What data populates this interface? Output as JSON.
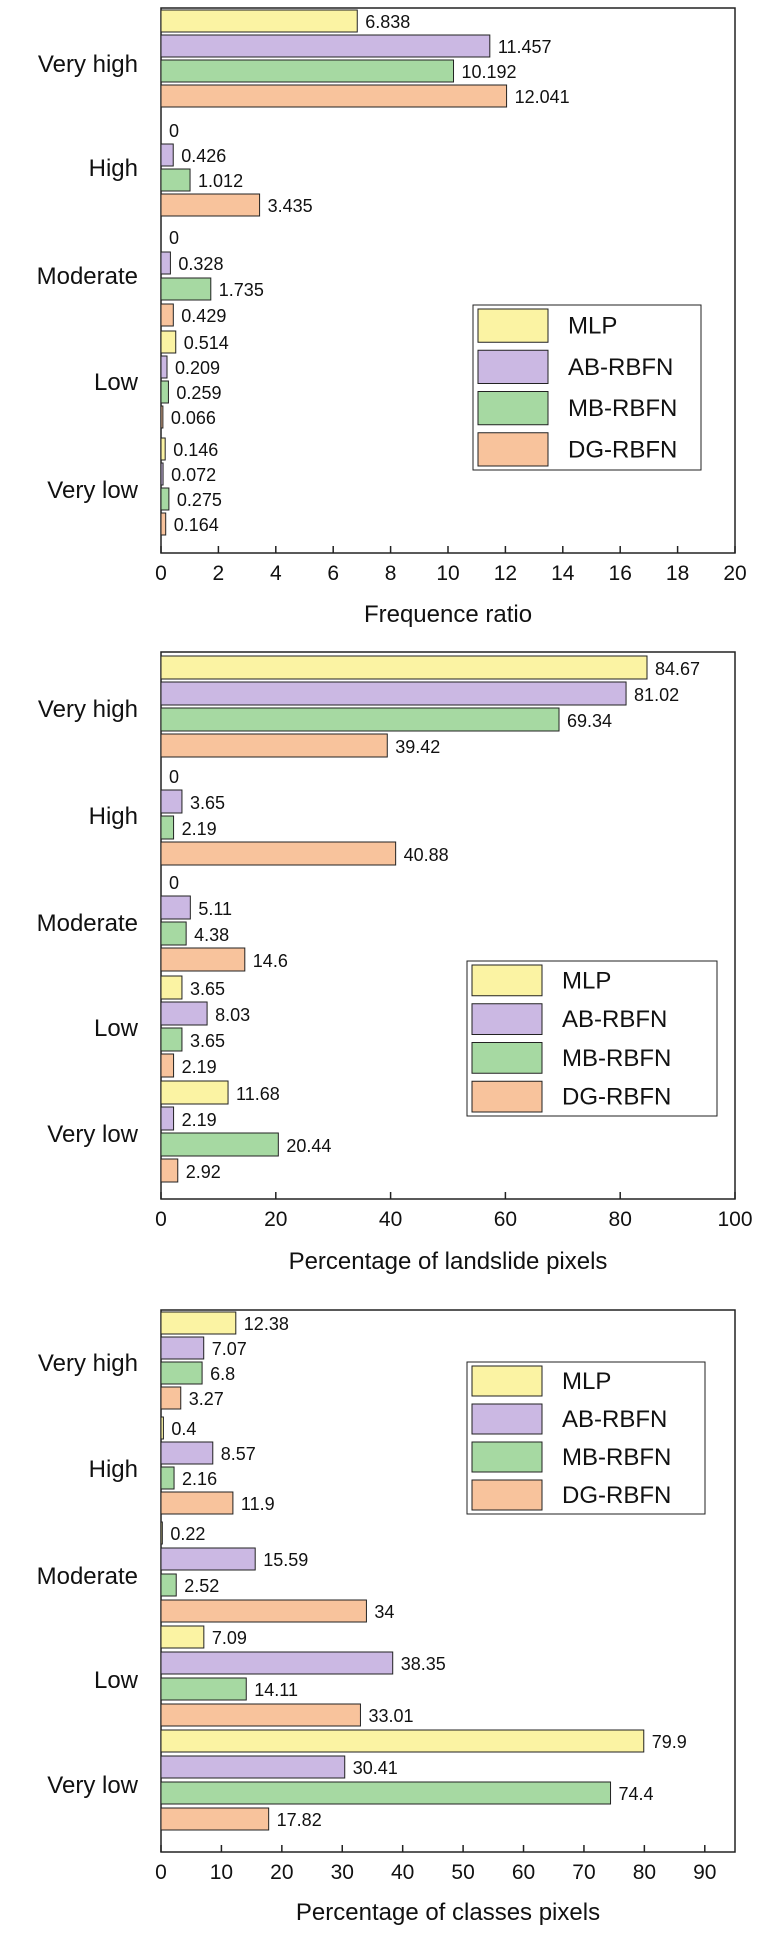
{
  "colors": {
    "MLP": "#fbf3a3",
    "AB-RBFN": "#cbb8e3",
    "MB-RBFN": "#a6d9a2",
    "DG-RBFN": "#f8c39c"
  },
  "chart_data": [
    {
      "type": "bar",
      "orientation": "horizontal",
      "xlabel": "Frequence ratio",
      "categories": [
        "Very high",
        "High",
        "Moderate",
        "Low",
        "Very low"
      ],
      "xlim": [
        0,
        20
      ],
      "xticks": [
        0,
        2,
        4,
        6,
        8,
        10,
        12,
        14,
        16,
        18,
        20
      ],
      "legend": {
        "position": "right",
        "entries": [
          "MLP",
          "AB-RBFN",
          "MB-RBFN",
          "DG-RBFN"
        ]
      },
      "series": [
        {
          "name": "MLP",
          "values": [
            6.838,
            0,
            0,
            0.514,
            0.146
          ]
        },
        {
          "name": "AB-RBFN",
          "values": [
            11.457,
            0.426,
            0.328,
            0.209,
            0.072
          ]
        },
        {
          "name": "MB-RBFN",
          "values": [
            10.192,
            1.012,
            1.735,
            0.259,
            0.275
          ]
        },
        {
          "name": "DG-RBFN",
          "values": [
            12.041,
            3.435,
            0.429,
            0.066,
            0.164
          ]
        }
      ]
    },
    {
      "type": "bar",
      "orientation": "horizontal",
      "xlabel": "Percentage of landslide pixels",
      "categories": [
        "Very high",
        "High",
        "Moderate",
        "Low",
        "Very low"
      ],
      "xlim": [
        0,
        100
      ],
      "xticks": [
        0,
        20,
        40,
        60,
        80,
        100
      ],
      "legend": {
        "position": "right",
        "entries": [
          "MLP",
          "AB-RBFN",
          "MB-RBFN",
          "DG-RBFN"
        ]
      },
      "series": [
        {
          "name": "MLP",
          "values": [
            84.67,
            0,
            0,
            3.65,
            11.68
          ]
        },
        {
          "name": "AB-RBFN",
          "values": [
            81.02,
            3.65,
            5.11,
            8.03,
            2.19
          ]
        },
        {
          "name": "MB-RBFN",
          "values": [
            69.34,
            2.19,
            4.38,
            3.65,
            20.44
          ]
        },
        {
          "name": "DG-RBFN",
          "values": [
            39.42,
            40.88,
            14.6,
            2.19,
            2.92
          ]
        }
      ]
    },
    {
      "type": "bar",
      "orientation": "horizontal",
      "xlabel": "Percentage of classes pixels",
      "categories": [
        "Very high",
        "High",
        "Moderate",
        "Low",
        "Very low"
      ],
      "xlim": [
        0,
        95
      ],
      "xticks": [
        0,
        10,
        20,
        30,
        40,
        50,
        60,
        70,
        80,
        90
      ],
      "legend": {
        "position": "top-right",
        "entries": [
          "MLP",
          "AB-RBFN",
          "MB-RBFN",
          "DG-RBFN"
        ]
      },
      "series": [
        {
          "name": "MLP",
          "values": [
            12.38,
            0.4,
            0.22,
            7.09,
            79.9
          ]
        },
        {
          "name": "AB-RBFN",
          "values": [
            7.07,
            8.57,
            15.59,
            38.35,
            30.41
          ]
        },
        {
          "name": "MB-RBFN",
          "values": [
            6.8,
            2.16,
            2.52,
            14.11,
            74.4
          ]
        },
        {
          "name": "DG-RBFN",
          "values": [
            3.27,
            11.9,
            34,
            33.01,
            17.82
          ]
        }
      ]
    }
  ]
}
